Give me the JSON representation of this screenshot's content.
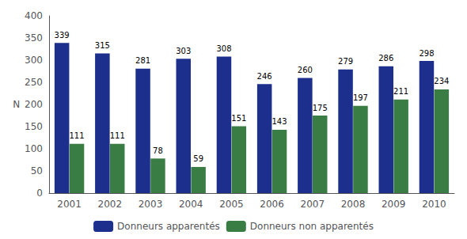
{
  "chart_data": {
    "type": "bar",
    "categories": [
      "2001",
      "2002",
      "2003",
      "2004",
      "2005",
      "2006",
      "2007",
      "2008",
      "2009",
      "2010"
    ],
    "series": [
      {
        "name": "Donneurs apparentés",
        "color": "#1C2F8C",
        "values": [
          339,
          315,
          281,
          303,
          308,
          246,
          260,
          279,
          286,
          298
        ]
      },
      {
        "name": "Donneurs non apparentés",
        "color": "#3A7D44",
        "values": [
          111,
          111,
          78,
          59,
          151,
          143,
          175,
          197,
          211,
          234
        ]
      }
    ],
    "ylabel": "N",
    "ylim": [
      0,
      400
    ],
    "yticks": [
      0,
      50,
      100,
      150,
      200,
      250,
      300,
      350,
      400
    ],
    "data_labels": true,
    "grid": false,
    "legend": "bottom"
  }
}
